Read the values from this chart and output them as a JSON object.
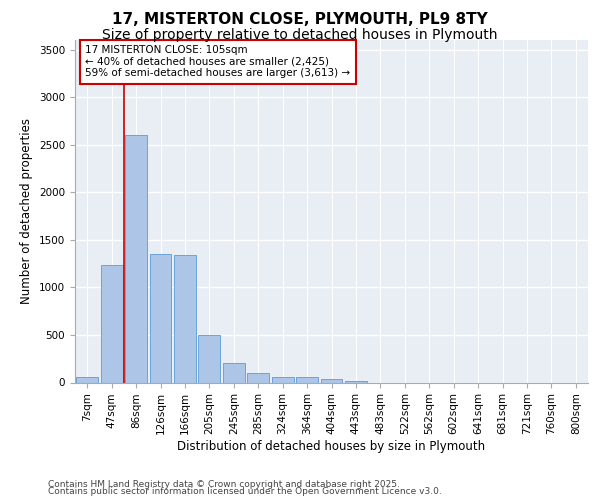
{
  "title_line1": "17, MISTERTON CLOSE, PLYMOUTH, PL9 8TY",
  "title_line2": "Size of property relative to detached houses in Plymouth",
  "xlabel": "Distribution of detached houses by size in Plymouth",
  "ylabel": "Number of detached properties",
  "categories": [
    "7sqm",
    "47sqm",
    "86sqm",
    "126sqm",
    "166sqm",
    "205sqm",
    "245sqm",
    "285sqm",
    "324sqm",
    "364sqm",
    "404sqm",
    "443sqm",
    "483sqm",
    "522sqm",
    "562sqm",
    "602sqm",
    "641sqm",
    "681sqm",
    "721sqm",
    "760sqm",
    "800sqm"
  ],
  "values": [
    55,
    1240,
    2600,
    1350,
    1340,
    500,
    210,
    105,
    55,
    55,
    35,
    20,
    0,
    0,
    0,
    0,
    0,
    0,
    0,
    0,
    0
  ],
  "bar_color": "#adc6e8",
  "bar_edge_color": "#5b9bd5",
  "red_line_x": 1.5,
  "annotation_text": "17 MISTERTON CLOSE: 105sqm\n← 40% of detached houses are smaller (2,425)\n59% of semi-detached houses are larger (3,613) →",
  "annotation_box_color": "#ffffff",
  "annotation_box_edge": "#cc0000",
  "red_line_color": "#cc0000",
  "ylim": [
    0,
    3600
  ],
  "yticks": [
    0,
    500,
    1000,
    1500,
    2000,
    2500,
    3000,
    3500
  ],
  "bg_color": "#e8eef4",
  "grid_color": "#ffffff",
  "footer_line1": "Contains HM Land Registry data © Crown copyright and database right 2025.",
  "footer_line2": "Contains public sector information licensed under the Open Government Licence v3.0.",
  "title_fontsize": 11,
  "subtitle_fontsize": 10,
  "axis_label_fontsize": 8.5,
  "tick_fontsize": 7.5,
  "annotation_fontsize": 7.5,
  "footer_fontsize": 6.5
}
